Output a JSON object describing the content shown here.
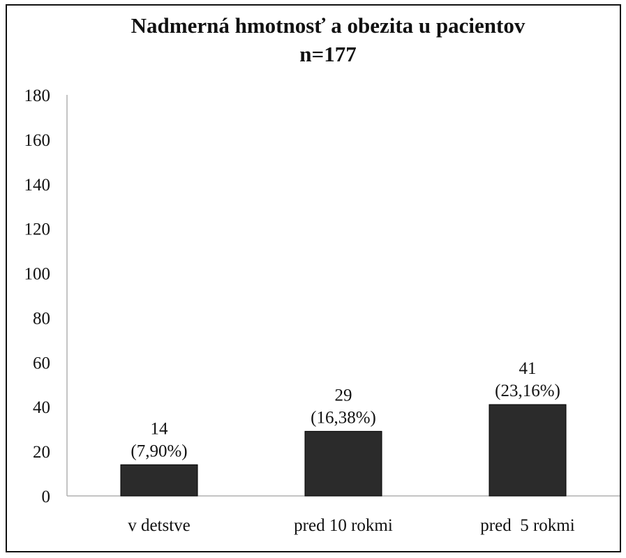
{
  "chart_data": {
    "type": "bar",
    "title": "Nadmerná hmotnosť a obezita u pacientov",
    "subtitle": "n=177",
    "categories": [
      "v detstve",
      "pred 10 rokmi",
      "pred  5 rokmi"
    ],
    "values": [
      14,
      29,
      41
    ],
    "data_labels": [
      {
        "value": "14",
        "percent": "(7,90%)"
      },
      {
        "value": "29",
        "percent": "(16,38%)"
      },
      {
        "value": "41",
        "percent": "(23,16%)"
      }
    ],
    "ylim": [
      0,
      180
    ],
    "yticks": [
      "0",
      "20",
      "40",
      "60",
      "80",
      "100",
      "120",
      "140",
      "160",
      "180"
    ],
    "grid": false,
    "legend": "none",
    "bar_color": "#2b2b2b"
  }
}
